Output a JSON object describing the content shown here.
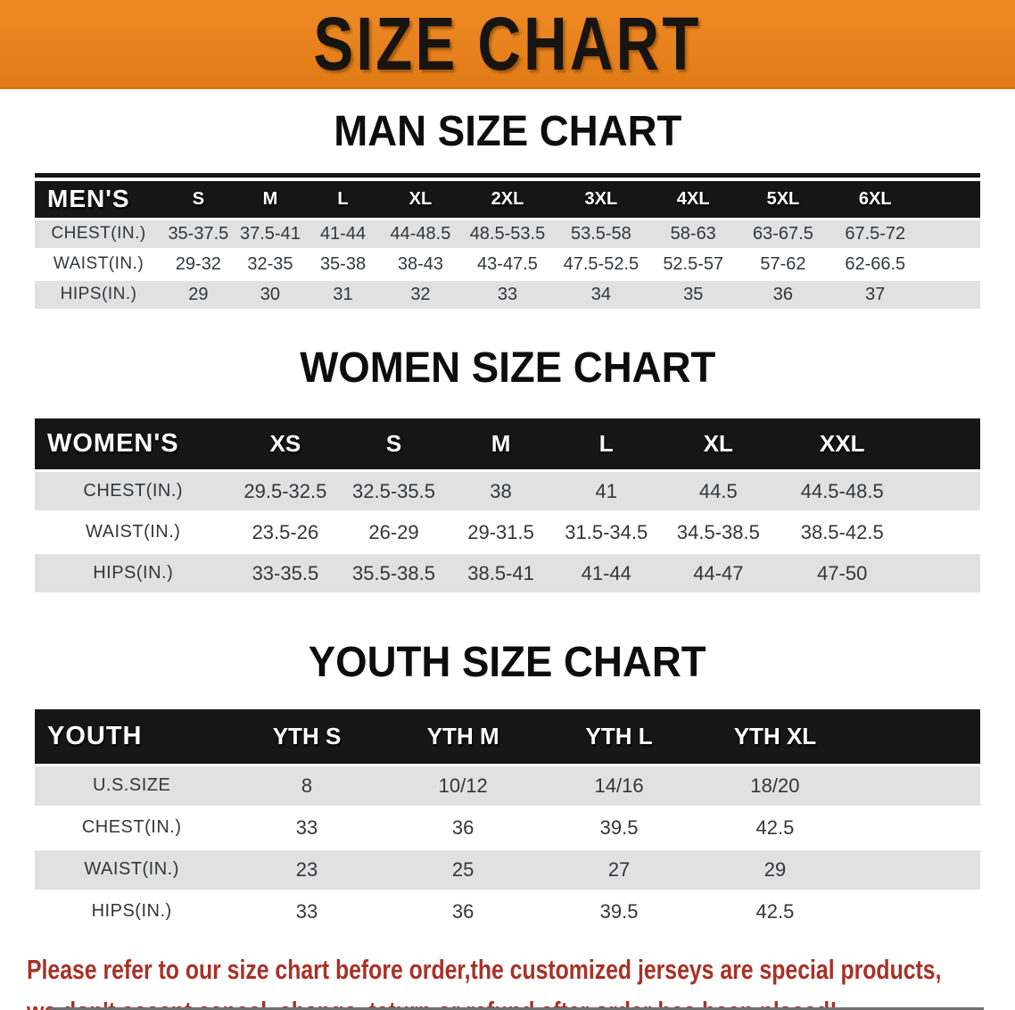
{
  "banner": {
    "title": "SIZE CHART"
  },
  "colors": {
    "banner_bg": "#e8821e",
    "header_bar": "#161616",
    "row_alt": "#e1e1e1",
    "disclaimer_red": "#a93126"
  },
  "sections": {
    "men": {
      "heading": "MAN SIZE CHART",
      "group_label": "MEN'S",
      "sizes": [
        "S",
        "M",
        "L",
        "XL",
        "2XL",
        "3XL",
        "4XL",
        "5XL",
        "6XL"
      ],
      "rows": [
        {
          "label": "CHEST(IN.)",
          "values": [
            "35-37.5",
            "37.5-41",
            "41-44",
            "44-48.5",
            "48.5-53.5",
            "53.5-58",
            "58-63",
            "63-67.5",
            "67.5-72"
          ]
        },
        {
          "label": "WAIST(IN.)",
          "values": [
            "29-32",
            "32-35",
            "35-38",
            "38-43",
            "43-47.5",
            "47.5-52.5",
            "52.5-57",
            "57-62",
            "62-66.5"
          ]
        },
        {
          "label": "HIPS(IN.)",
          "values": [
            "29",
            "30",
            "31",
            "32",
            "33",
            "34",
            "35",
            "36",
            "37"
          ]
        }
      ]
    },
    "women": {
      "heading": "WOMEN SIZE CHART",
      "group_label": "WOMEN'S",
      "sizes": [
        "XS",
        "S",
        "M",
        "L",
        "XL",
        "XXL"
      ],
      "rows": [
        {
          "label": "CHEST(IN.)",
          "values": [
            "29.5-32.5",
            "32.5-35.5",
            "38",
            "41",
            "44.5",
            "44.5-48.5"
          ]
        },
        {
          "label": "WAIST(IN.)",
          "values": [
            "23.5-26",
            "26-29",
            "29-31.5",
            "31.5-34.5",
            "34.5-38.5",
            "38.5-42.5"
          ]
        },
        {
          "label": "HIPS(IN.)",
          "values": [
            "33-35.5",
            "35.5-38.5",
            "38.5-41",
            "41-44",
            "44-47",
            "47-50"
          ]
        }
      ]
    },
    "youth": {
      "heading": "YOUTH SIZE CHART",
      "group_label": "YOUTH",
      "sizes": [
        "YTH S",
        "YTH M",
        "YTH L",
        "YTH XL"
      ],
      "rows": [
        {
          "label": "U.S.SIZE",
          "values": [
            "8",
            "10/12",
            "14/16",
            "18/20"
          ]
        },
        {
          "label": "CHEST(IN.)",
          "values": [
            "33",
            "36",
            "39.5",
            "42.5"
          ]
        },
        {
          "label": "WAIST(IN.)",
          "values": [
            "23",
            "25",
            "27",
            "29"
          ]
        },
        {
          "label": "HIPS(IN.)",
          "values": [
            "33",
            "36",
            "39.5",
            "42.5"
          ]
        }
      ]
    }
  },
  "disclaimer": {
    "line1": "Please refer to our size chart before order,the customized jerseys are special products,",
    "line2": "we don't accept cancel, change, teturn or refund after order has been placed!"
  }
}
